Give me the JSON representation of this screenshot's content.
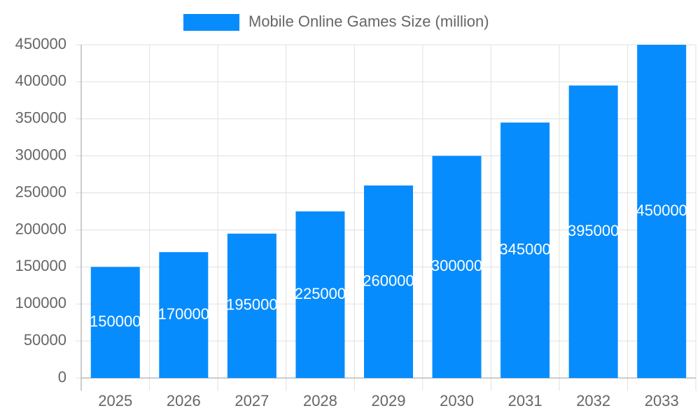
{
  "chart_data": {
    "type": "bar",
    "categories": [
      "2025",
      "2026",
      "2027",
      "2028",
      "2029",
      "2030",
      "2031",
      "2032",
      "2033"
    ],
    "series": [
      {
        "name": "Mobile Online Games Size (million)",
        "color": "#078cfd",
        "values": [
          150000,
          170000,
          195000,
          225000,
          260000,
          300000,
          345000,
          395000,
          450000
        ]
      }
    ],
    "ylim": [
      0,
      450000
    ],
    "yticks": [
      0,
      50000,
      100000,
      150000,
      200000,
      250000,
      300000,
      350000,
      400000,
      450000
    ],
    "grid": true,
    "legend": "top",
    "data_labels": true
  }
}
